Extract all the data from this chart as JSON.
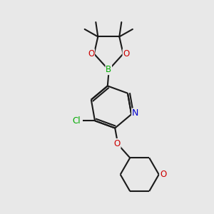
{
  "background_color": "#e8e8e8",
  "bond_color": "#1a1a1a",
  "atom_colors": {
    "O": "#cc0000",
    "B": "#00aa00",
    "N": "#0000cc",
    "Cl": "#00aa00",
    "C": "#1a1a1a"
  },
  "lw": 1.5,
  "font_size": 8.5
}
